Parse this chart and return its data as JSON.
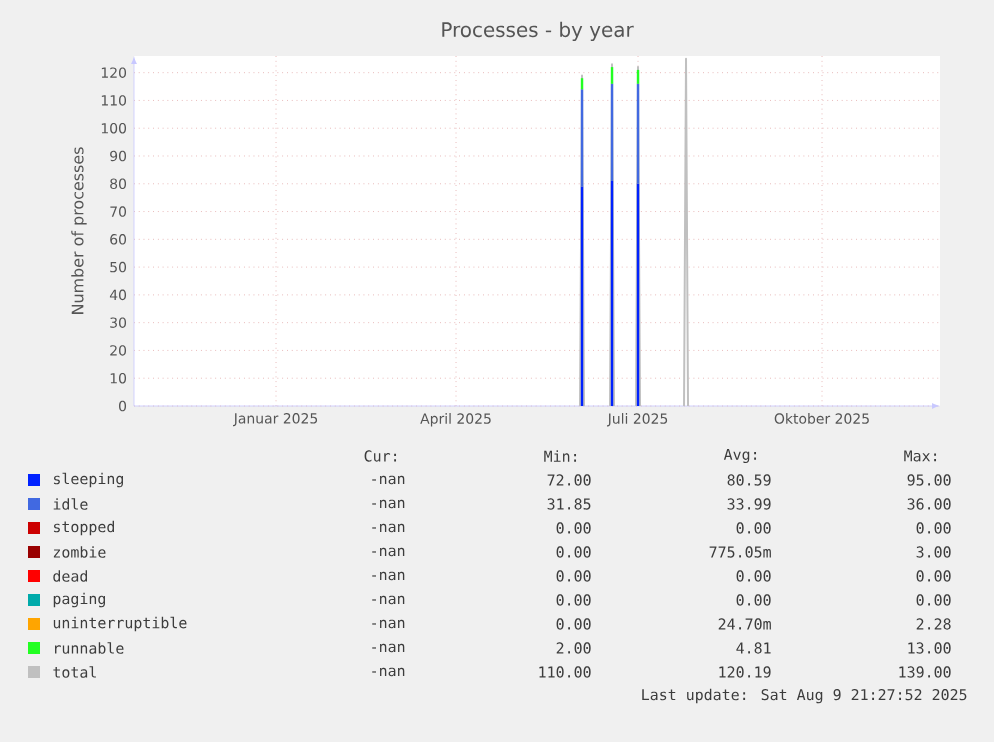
{
  "chart_data": {
    "type": "bar",
    "stacked": true,
    "title": "Processes - by year",
    "ylabel": "Number of processes",
    "xlim": [
      "2024-10-22",
      "2025-11-29"
    ],
    "xticks": [
      {
        "value": "2025-01-01",
        "label": "Januar 2025"
      },
      {
        "value": "2025-04-01",
        "label": "April 2025"
      },
      {
        "value": "2025-07-01",
        "label": "Juli 2025"
      },
      {
        "value": "2025-10-01",
        "label": "Oktober 2025"
      }
    ],
    "ylim": [
      0,
      126
    ],
    "yticks": [
      0,
      10,
      20,
      30,
      40,
      50,
      60,
      70,
      80,
      90,
      100,
      110,
      120
    ],
    "grid": true,
    "legend": "bottom",
    "x": [
      "2025-06-03",
      "2025-06-18",
      "2025-07-01"
    ],
    "series": [
      {
        "name": "sleeping",
        "color": "#0022ff",
        "values": [
          79,
          81,
          80
        ]
      },
      {
        "name": "idle",
        "color": "#4169e1",
        "values": [
          35,
          35,
          36
        ]
      },
      {
        "name": "stopped",
        "color": "#cc0000",
        "values": [
          0,
          0,
          0
        ]
      },
      {
        "name": "zombie",
        "color": "#990000",
        "values": [
          0,
          0,
          0
        ]
      },
      {
        "name": "dead",
        "color": "#ff0000",
        "values": [
          0,
          0,
          0
        ]
      },
      {
        "name": "paging",
        "color": "#00aaaa",
        "values": [
          0,
          0,
          0
        ]
      },
      {
        "name": "uninterruptible",
        "color": "#ffa500",
        "values": [
          0,
          0,
          0
        ]
      },
      {
        "name": "runnable",
        "color": "#22ff22",
        "values": [
          4,
          6,
          5
        ]
      },
      {
        "name": "total",
        "color": "#c0c0c0",
        "type": "line",
        "x": [
          "2025-06-02",
          "2025-06-03",
          "2025-06-04",
          "2025-06-10",
          "2025-06-17",
          "2025-06-18",
          "2025-06-19",
          "2025-06-24",
          "2025-06-30",
          "2025-07-01",
          "2025-07-02",
          "2025-07-12",
          "2025-07-24",
          "2025-07-25",
          "2025-07-26"
        ],
        "values": [
          0,
          119,
          0,
          null,
          0,
          123,
          0,
          null,
          0,
          122,
          0,
          null,
          0,
          125,
          0
        ]
      }
    ],
    "annotations": [
      "Cur:",
      "Min:",
      "Avg:",
      "Max:",
      "-nan",
      "72.00",
      "80.59",
      "95.00",
      "-nan",
      "31.85",
      "33.99",
      "36.00",
      "-nan",
      "0.00",
      "0.00",
      "0.00",
      "-nan",
      "0.00",
      "775.05m",
      "3.00",
      "-nan",
      "0.00",
      "0.00",
      "0.00",
      "-nan",
      "0.00",
      "0.00",
      "0.00",
      "-nan",
      "0.00",
      "24.70m",
      "2.28",
      "-nan",
      "2.00",
      "4.81",
      "13.00",
      "-nan",
      "110.00",
      "120.19",
      "139.00",
      "Last update: Sat Aug  9 21:27:52 2025"
    ]
  }
}
